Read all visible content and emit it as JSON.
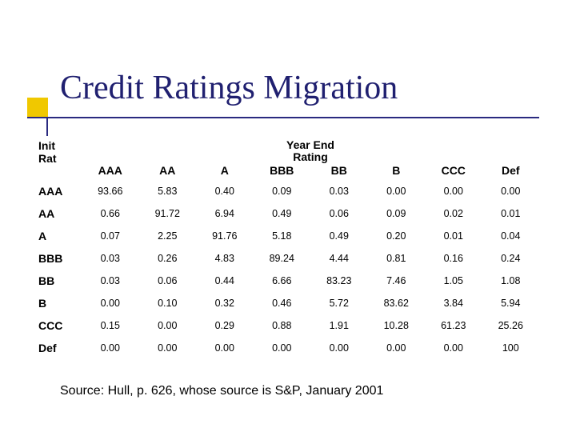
{
  "title": "Credit Ratings Migration",
  "table": {
    "super_header": "Year End\nRating",
    "row_axis_label": "Init\nRat",
    "columns": [
      "AAA",
      "AA",
      "A",
      "BBB",
      "BB",
      "B",
      "CCC",
      "Def"
    ],
    "rows": [
      {
        "label": "AAA",
        "cells": [
          "93.66",
          "5.83",
          "0.40",
          "0.09",
          "0.03",
          "0.00",
          "0.00",
          "0.00"
        ]
      },
      {
        "label": "AA",
        "cells": [
          "0.66",
          "91.72",
          "6.94",
          "0.49",
          "0.06",
          "0.09",
          "0.02",
          "0.01"
        ]
      },
      {
        "label": "A",
        "cells": [
          "0.07",
          "2.25",
          "91.76",
          "5.18",
          "0.49",
          "0.20",
          "0.01",
          "0.04"
        ]
      },
      {
        "label": "BBB",
        "cells": [
          "0.03",
          "0.26",
          "4.83",
          "89.24",
          "4.44",
          "0.81",
          "0.16",
          "0.24"
        ]
      },
      {
        "label": "BB",
        "cells": [
          "0.03",
          "0.06",
          "0.44",
          "6.66",
          "83.23",
          "7.46",
          "1.05",
          "1.08"
        ]
      },
      {
        "label": "B",
        "cells": [
          "0.00",
          "0.10",
          "0.32",
          "0.46",
          "5.72",
          "83.62",
          "3.84",
          "5.94"
        ]
      },
      {
        "label": "CCC",
        "cells": [
          "0.15",
          "0.00",
          "0.29",
          "0.88",
          "1.91",
          "10.28",
          "61.23",
          "25.26"
        ]
      },
      {
        "label": "Def",
        "cells": [
          "0.00",
          "0.00",
          "0.00",
          "0.00",
          "0.00",
          "0.00",
          "0.00",
          "100"
        ]
      }
    ],
    "colors": {
      "title_color": "#202070",
      "accent_yellow": "#f0c800",
      "accent_line": "#2a2a80",
      "text": "#000000",
      "background": "#ffffff"
    },
    "fonts": {
      "title_family": "Times New Roman",
      "title_size_pt": 32,
      "body_family": "Arial",
      "cell_size_pt": 10,
      "header_size_pt": 11
    },
    "layout": {
      "col_widths_pct": [
        8,
        11.5,
        11.5,
        11.5,
        11.5,
        11.5,
        11.5,
        11.5,
        11.5
      ]
    }
  },
  "source": "Source: Hull, p. 626, whose source is S&P, January 2001"
}
